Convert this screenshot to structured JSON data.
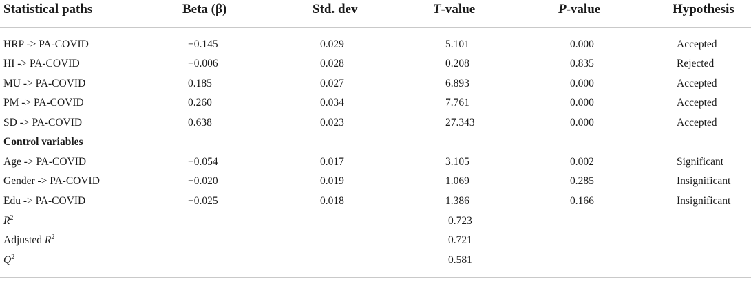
{
  "headers": {
    "path": "Statistical paths",
    "beta": "Beta (β)",
    "sd": "Std. dev",
    "t_italic": "T",
    "t_rest": "-value",
    "p_italic": "P",
    "p_rest": "-value",
    "hypothesis": "Hypothesis"
  },
  "rows": [
    {
      "path": "HRP -> PA-COVID",
      "beta": "−0.145",
      "sd": "0.029",
      "t": "5.101",
      "p": "0.000",
      "h": "Accepted"
    },
    {
      "path": "HI -> PA-COVID",
      "beta": "−0.006",
      "sd": "0.028",
      "t": "0.208",
      "p": "0.835",
      "h": "Rejected"
    },
    {
      "path": "MU -> PA-COVID",
      "beta": "0.185",
      "sd": "0.027",
      "t": "6.893",
      "p": "0.000",
      "h": "Accepted"
    },
    {
      "path": "PM -> PA-COVID",
      "beta": "0.260",
      "sd": "0.034",
      "t": "7.761",
      "p": "0.000",
      "h": "Accepted"
    },
    {
      "path": "SD -> PA-COVID",
      "beta": "0.638",
      "sd": "0.023",
      "t": "27.343",
      "p": "0.000",
      "h": "Accepted"
    }
  ],
  "control_heading": "Control variables",
  "control_rows": [
    {
      "path": "Age -> PA-COVID",
      "beta": "−0.054",
      "sd": "0.017",
      "t": "3.105",
      "p": "0.002",
      "h": "Significant"
    },
    {
      "path": "Gender -> PA-COVID",
      "beta": "−0.020",
      "sd": "0.019",
      "t": "1.069",
      "p": "0.285",
      "h": "Insignificant"
    },
    {
      "path": "Edu -> PA-COVID",
      "beta": "−0.025",
      "sd": "0.018",
      "t": "1.386",
      "p": "0.166",
      "h": "Insignificant"
    }
  ],
  "fit": {
    "r2_label": "R",
    "r2_sup": "2",
    "r2_value": "0.723",
    "adj_prefix": "Adjusted ",
    "adj_label": "R",
    "adj_sup": "2",
    "adj_value": "0.721",
    "q2_label": "Q",
    "q2_sup": "2",
    "q2_value": "0.581"
  }
}
